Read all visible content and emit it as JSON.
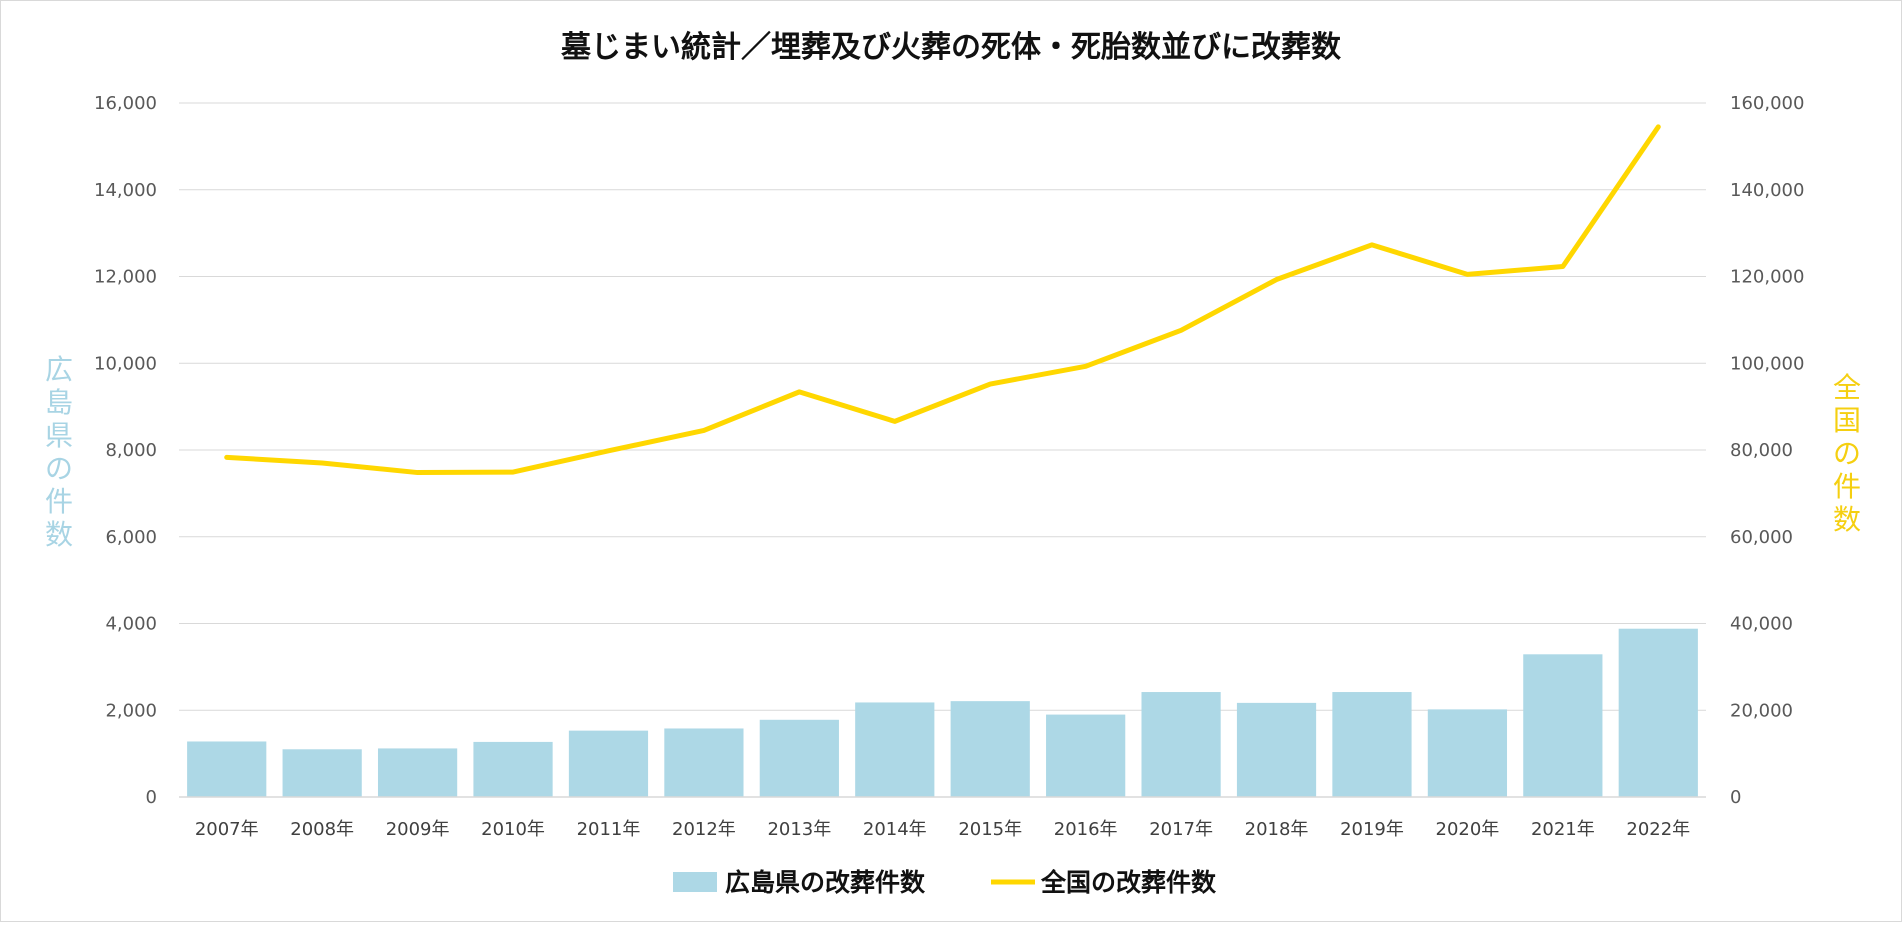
{
  "chart_data": {
    "type": "bar",
    "title": "墓じまい統計／埋葬及び火葬の死体・死胎数並びに改葬数",
    "categories": [
      "2007年",
      "2008年",
      "2009年",
      "2010年",
      "2011年",
      "2012年",
      "2013年",
      "2014年",
      "2015年",
      "2016年",
      "2017年",
      "2018年",
      "2019年",
      "2020年",
      "2021年",
      "2022年"
    ],
    "series": [
      {
        "name": "広島県の改葬件数",
        "type": "bar",
        "axis": "left",
        "color": "#add8e6",
        "values": [
          1280,
          1100,
          1120,
          1270,
          1530,
          1580,
          1780,
          2180,
          2210,
          1900,
          2420,
          2170,
          2420,
          2020,
          3290,
          3880
        ]
      },
      {
        "name": "全国の改葬件数",
        "type": "line",
        "axis": "right",
        "color": "#ffd700",
        "values": [
          78300,
          77000,
          74800,
          74900,
          79800,
          84500,
          93400,
          86600,
          95200,
          99300,
          107600,
          119300,
          127300,
          120500,
          122300,
          154500
        ]
      }
    ],
    "y_left": {
      "label": "広島県の件数",
      "range": [
        0,
        16000
      ],
      "ticks": [
        "0",
        "2,000",
        "4,000",
        "6,000",
        "8,000",
        "10,000",
        "12,000",
        "14,000",
        "16,000"
      ],
      "color": "#a8d4e4"
    },
    "y_right": {
      "label": "全国の件数",
      "range": [
        0,
        160000
      ],
      "ticks": [
        "0",
        "20,000",
        "40,000",
        "60,000",
        "80,000",
        "100,000",
        "120,000",
        "140,000",
        "160,000"
      ],
      "color": "#f5cf10"
    },
    "grid": true,
    "legend": "bottom-center"
  }
}
